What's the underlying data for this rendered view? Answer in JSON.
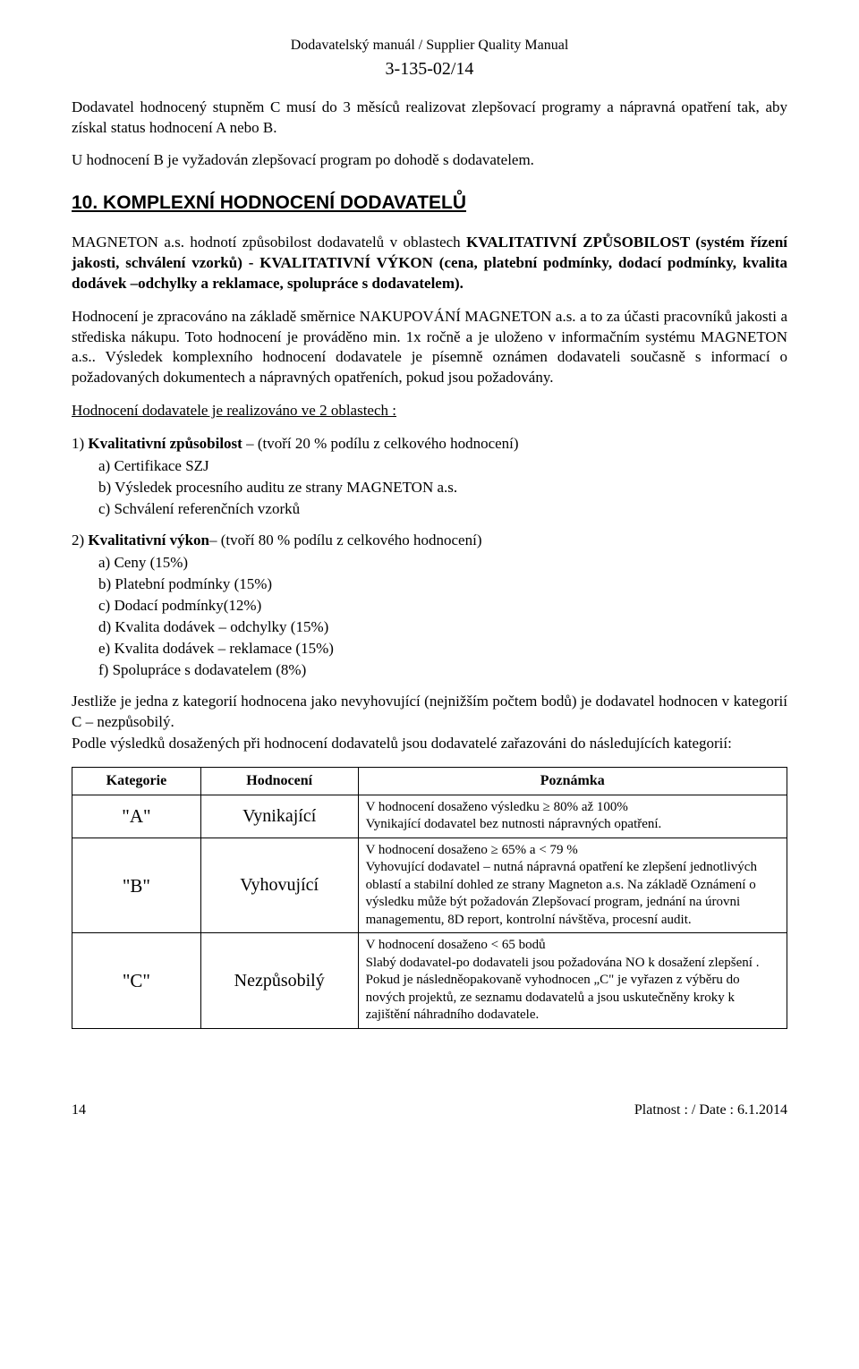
{
  "header": {
    "line1": "Dodavatelský manuál / Supplier Quality Manual",
    "line2": "3-135-02/14"
  },
  "intro1": "Dodavatel hodnocený stupněm C musí do 3 měsíců realizovat zlepšovací programy a nápravná opatření tak, aby získal status hodnocení A nebo B.",
  "intro2": "U hodnocení B je vyžadován zlepšovací program po dohodě s dodavatelem.",
  "section_title": "10. KOMPLEXNÍ HODNOCENÍ  DODAVATELŮ",
  "p_magneton_pre": "MAGNETON a.s. hodnotí způsobilost dodavatelů v oblastech ",
  "p_magneton_bold": "KVALITATIVNÍ ZPŮSOBILOST (systém řízení jakosti, schválení vzorků) - KVALITATIVNÍ VÝKON (cena, platební podmínky, dodací podmínky, kvalita dodávek –odchylky a reklamace, spolupráce s dodavatelem).",
  "p_hodnoceni": "Hodnocení je zpracováno na základě směrnice NAKUPOVÁNÍ MAGNETON a.s. a to za účasti pracovníků jakosti a střediska nákupu. Toto hodnocení je prováděno min. 1x ročně a je uloženo v informačním systému MAGNETON a.s.. Výsledek komplexního hodnocení dodavatele je písemně oznámen dodavateli současně s informací o požadovaných dokumentech a nápravných opatřeních, pokud jsou požadovány.",
  "realizace_line": "Hodnocení dodavatele je realizováno ve 2 oblastech :",
  "list1": {
    "label_pre": "1) ",
    "label_bold": "Kvalitativní způsobilost",
    "label_post": " – (tvoří 20 % podílu z celkového hodnocení)",
    "items": [
      "a) Certifikace SZJ",
      "b) Výsledek procesního auditu ze strany MAGNETON a.s.",
      "c) Schválení referenčních vzorků"
    ]
  },
  "list2": {
    "label_pre": "2) ",
    "label_bold": "Kvalitativní výkon",
    "label_post": "– (tvoří 80 % podílu z celkového hodnocení)",
    "items": [
      "a) Ceny (15%)",
      "b) Platební podmínky (15%)",
      "c) Dodací podmínky(12%)",
      "d) Kvalita dodávek – odchylky (15%)",
      "e) Kvalita dodávek – reklamace (15%)",
      "f) Spolupráce s dodavatelem (8%)"
    ]
  },
  "p_jestlize": "Jestliže je jedna z kategorií hodnocena jako nevyhovující (nejnižším počtem bodů) je dodavatel hodnocen v kategorií C – nezpůsobilý.",
  "p_podle": "Podle výsledků dosažených při hodnocení dodavatelů jsou dodavatelé zařazováni do následujících kategorií:",
  "table": {
    "headers": {
      "c1": "Kategorie",
      "c2": "Hodnocení",
      "c3": "Poznámka"
    },
    "rows": [
      {
        "cat": "\"A\"",
        "eval": "Vynikající",
        "note": "V hodnocení dosaženo výsledku ≥ 80% až 100%\nVynikající dodavatel bez nutnosti nápravných opatření."
      },
      {
        "cat": "\"B\"",
        "eval": "Vyhovující",
        "note": "V hodnocení dosaženo ≥ 65% a < 79 %\nVyhovující dodavatel – nutná nápravná opatření ke zlepšení jednotlivých oblastí a stabilní dohled ze strany Magneton a.s. Na základě Oznámení o výsledku může být požadován Zlepšovací program, jednání na úrovni managementu, 8D report, kontrolní návštěva, procesní audit."
      },
      {
        "cat": "\"C\"",
        "eval": "Nezpůsobilý",
        "note": "V hodnocení dosaženo < 65 bodů\nSlabý dodavatel-po dodavateli jsou požadována NO k dosažení zlepšení . Pokud je následněopakovaně vyhodnocen „C\" je vyřazen z výběru do nových projektů, ze seznamu dodavatelů a jsou uskutečněny kroky k zajištění náhradního dodavatele."
      }
    ]
  },
  "footer": {
    "page": "14",
    "date": "Platnost : / Date : 6.1.2014"
  }
}
